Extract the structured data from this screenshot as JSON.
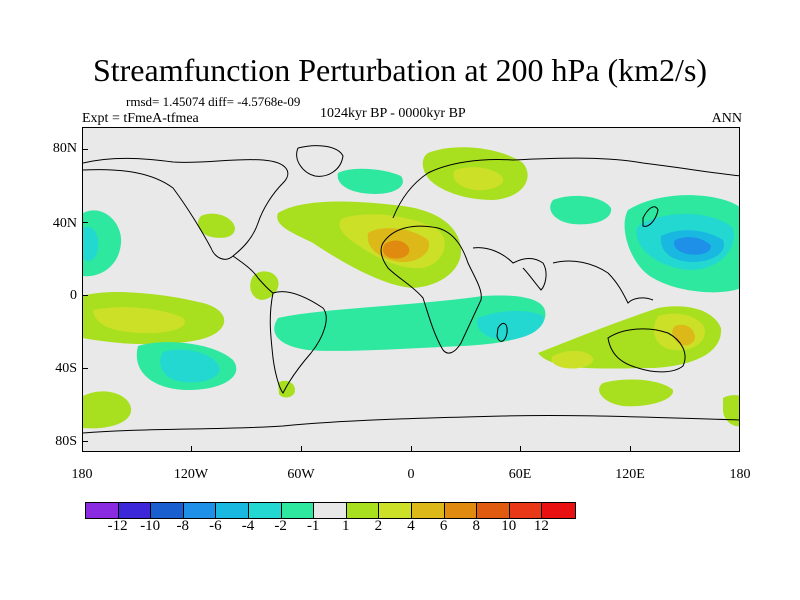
{
  "title": "Streamfunction Perturbation at 200 hPa (km2/s)",
  "stats": "rmsd= 1.45074 diff= -4.5768e-09",
  "experiment": "Expt = tFmeA-tfmea",
  "period": "1024kyr BP - 0000kyr BP",
  "season": "ANN",
  "lat_labels": [
    "80N",
    "40N",
    "0",
    "40S",
    "80S"
  ],
  "lon_labels": [
    "180",
    "120W",
    "60W",
    "0",
    "60E",
    "120E",
    "180"
  ],
  "colorbar": {
    "labels": [
      "-12",
      "-10",
      "-8",
      "-6",
      "-4",
      "-2",
      "-1",
      "1",
      "2",
      "4",
      "6",
      "8",
      "10",
      "12"
    ],
    "colors": [
      "#8a2be2",
      "#3c28d8",
      "#1a5fd0",
      "#1e90e8",
      "#19b8e0",
      "#22d8d0",
      "#2ee8a0",
      "#e8e8e8",
      "#a8e020",
      "#cce028",
      "#dcb818",
      "#e08a10",
      "#e05a10",
      "#e83818",
      "#e81010"
    ]
  },
  "colors": {
    "background": "#e9e9e9",
    "positive_weak": "#a8e020",
    "positive_mid": "#cce028",
    "positive_strong": "#dcb818",
    "positive_max": "#e08a10",
    "negative_weak": "#2ee8a0",
    "negative_mid": "#22d8d0",
    "negative_strong": "#19b8e0",
    "negative_max": "#1e90e8"
  }
}
